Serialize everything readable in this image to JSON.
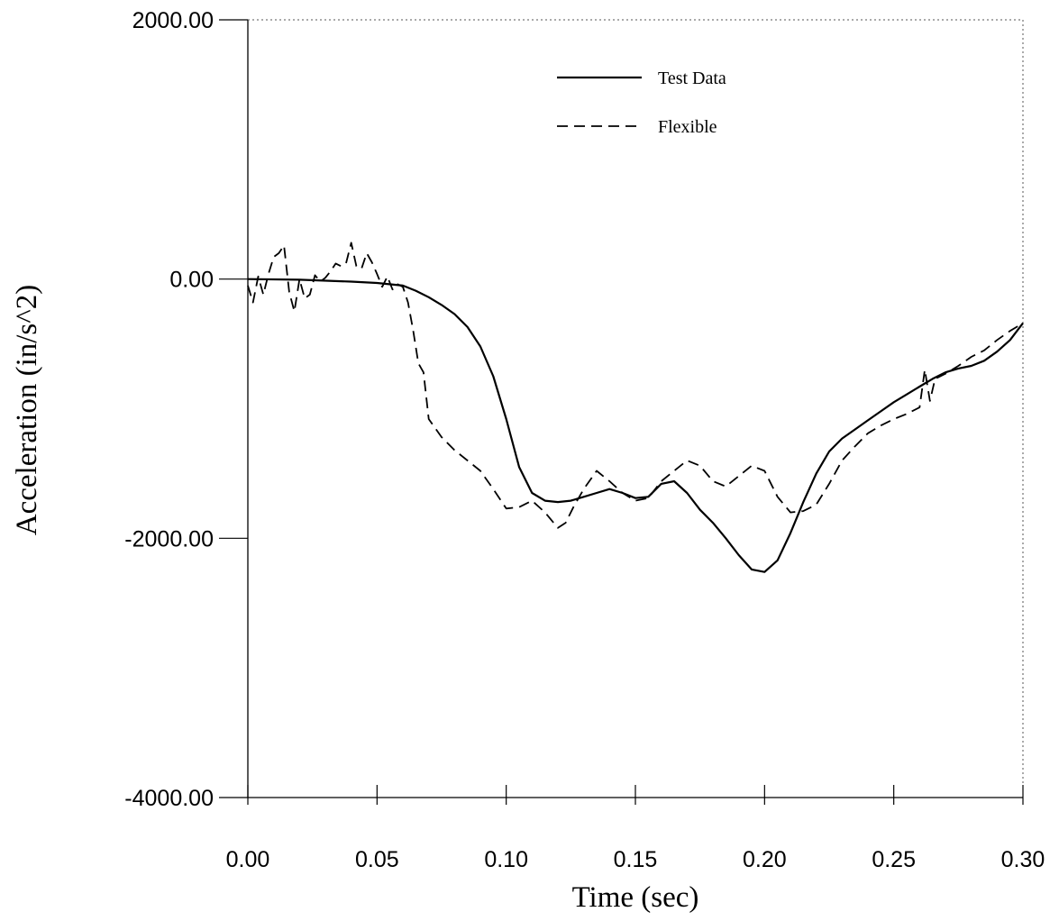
{
  "chart_data": {
    "type": "line",
    "title": "",
    "xlabel": "Time (sec)",
    "ylabel": "Acceleration (in/s^2)",
    "xlim": [
      0,
      0.3
    ],
    "ylim": [
      -4000,
      2000
    ],
    "grid": false,
    "legend_position": "top-right",
    "x_ticks": [
      {
        "value": 0.0,
        "label": "0.00"
      },
      {
        "value": 0.05,
        "label": "0.05"
      },
      {
        "value": 0.1,
        "label": "0.10"
      },
      {
        "value": 0.15,
        "label": "0.15"
      },
      {
        "value": 0.2,
        "label": "0.20"
      },
      {
        "value": 0.25,
        "label": "0.25"
      },
      {
        "value": 0.3,
        "label": "0.30"
      }
    ],
    "y_ticks": [
      {
        "value": 2000,
        "label": "2000.00"
      },
      {
        "value": 0,
        "label": "0.00"
      },
      {
        "value": -2000,
        "label": "-2000.00"
      },
      {
        "value": -4000,
        "label": "-4000.00"
      }
    ],
    "series": [
      {
        "name": "Test Data",
        "style": "solid",
        "x": [
          0.0,
          0.02,
          0.04,
          0.05,
          0.06,
          0.065,
          0.07,
          0.075,
          0.08,
          0.085,
          0.09,
          0.095,
          0.1,
          0.105,
          0.11,
          0.115,
          0.12,
          0.125,
          0.13,
          0.135,
          0.14,
          0.145,
          0.15,
          0.155,
          0.16,
          0.165,
          0.17,
          0.175,
          0.18,
          0.185,
          0.19,
          0.195,
          0.2,
          0.205,
          0.21,
          0.215,
          0.22,
          0.225,
          0.23,
          0.235,
          0.24,
          0.245,
          0.25,
          0.255,
          0.26,
          0.265,
          0.27,
          0.275,
          0.28,
          0.285,
          0.29,
          0.295,
          0.3
        ],
        "y": [
          0,
          -5,
          -20,
          -30,
          -50,
          -90,
          -140,
          -200,
          -270,
          -370,
          -520,
          -750,
          -1080,
          -1450,
          -1650,
          -1710,
          -1720,
          -1710,
          -1680,
          -1650,
          -1620,
          -1650,
          -1690,
          -1680,
          -1580,
          -1560,
          -1650,
          -1780,
          -1880,
          -2000,
          -2130,
          -2240,
          -2260,
          -2170,
          -1960,
          -1720,
          -1500,
          -1330,
          -1230,
          -1160,
          -1090,
          -1020,
          -950,
          -890,
          -830,
          -770,
          -720,
          -690,
          -670,
          -630,
          -560,
          -470,
          -340
        ]
      },
      {
        "name": "Flexible",
        "style": "dashed",
        "x": [
          0.0,
          0.002,
          0.004,
          0.006,
          0.008,
          0.01,
          0.012,
          0.014,
          0.016,
          0.018,
          0.02,
          0.022,
          0.024,
          0.026,
          0.028,
          0.03,
          0.032,
          0.034,
          0.036,
          0.038,
          0.04,
          0.042,
          0.044,
          0.046,
          0.048,
          0.05,
          0.052,
          0.054,
          0.056,
          0.058,
          0.06,
          0.062,
          0.064,
          0.066,
          0.068,
          0.07,
          0.075,
          0.08,
          0.085,
          0.09,
          0.095,
          0.1,
          0.105,
          0.11,
          0.115,
          0.12,
          0.123,
          0.126,
          0.13,
          0.135,
          0.14,
          0.145,
          0.15,
          0.155,
          0.16,
          0.165,
          0.17,
          0.175,
          0.18,
          0.185,
          0.19,
          0.195,
          0.2,
          0.205,
          0.21,
          0.215,
          0.22,
          0.225,
          0.23,
          0.235,
          0.24,
          0.245,
          0.25,
          0.255,
          0.26,
          0.262,
          0.264,
          0.266,
          0.27,
          0.275,
          0.28,
          0.285,
          0.29,
          0.295,
          0.3
        ],
        "y": [
          -50,
          -180,
          20,
          -120,
          40,
          170,
          200,
          260,
          -100,
          -250,
          0,
          -150,
          -120,
          30,
          -20,
          10,
          60,
          120,
          100,
          120,
          280,
          100,
          80,
          200,
          130,
          40,
          -60,
          20,
          -80,
          -40,
          -60,
          -180,
          -400,
          -650,
          -720,
          -1080,
          -1220,
          -1320,
          -1400,
          -1480,
          -1620,
          -1770,
          -1760,
          -1710,
          -1800,
          -1920,
          -1880,
          -1760,
          -1620,
          -1480,
          -1560,
          -1650,
          -1710,
          -1690,
          -1560,
          -1480,
          -1400,
          -1440,
          -1560,
          -1600,
          -1520,
          -1440,
          -1480,
          -1680,
          -1800,
          -1790,
          -1740,
          -1580,
          -1400,
          -1290,
          -1190,
          -1130,
          -1080,
          -1040,
          -990,
          -700,
          -940,
          -770,
          -730,
          -670,
          -600,
          -550,
          -470,
          -400,
          -340
        ]
      }
    ]
  }
}
